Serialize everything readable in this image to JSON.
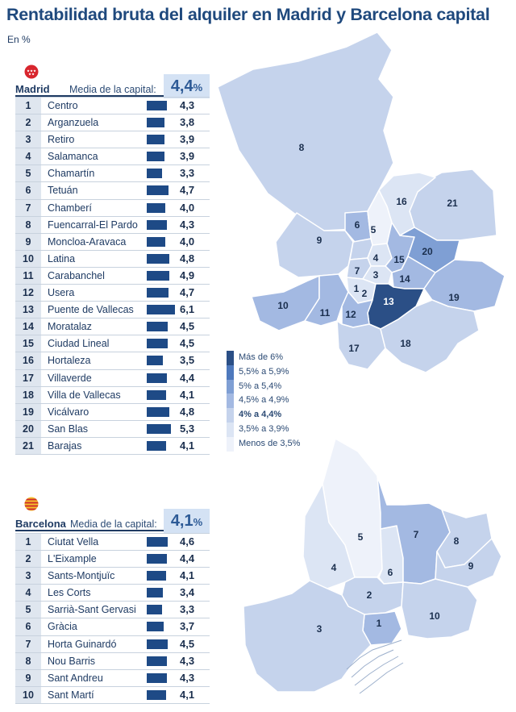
{
  "title": "Rentabilidad bruta del alquiler en Madrid y Barcelona capital",
  "subtitle": "En %",
  "madrid": {
    "city": "Madrid",
    "avg_label": "Media de la capital:",
    "avg_value": "4,4",
    "avg_unit": "%"
  },
  "barcelona": {
    "city": "Barcelona",
    "avg_label": "Media de la capital:",
    "avg_value": "4,1",
    "avg_unit": "%"
  },
  "legend": [
    {
      "label": "Más de 6%",
      "color": "#2b4f86"
    },
    {
      "label": "5,5% a 5,9%",
      "color": "#4e79bd"
    },
    {
      "label": "5% a 5,4%",
      "color": "#7f9fd4"
    },
    {
      "label": "4,5% a 4,9%",
      "color": "#a3b9e2"
    },
    {
      "label": "4% a 4,4%",
      "color": "#c5d3ec"
    },
    {
      "label": "3,5% a 3,9%",
      "color": "#dce5f4"
    },
    {
      "label": "Menos de 3,5%",
      "color": "#eef2fa"
    }
  ],
  "colors": {
    "bar": "#1e4a86",
    "title": "#1f497d",
    "avg_box": "#d4e2f4",
    "map_border": "#ffffff"
  },
  "chart_data": [
    {
      "type": "bar",
      "title": "Madrid",
      "ids": [
        "1",
        "2",
        "3",
        "4",
        "5",
        "6",
        "7",
        "8",
        "9",
        "10",
        "11",
        "12",
        "13",
        "14",
        "15",
        "16",
        "17",
        "18",
        "19",
        "20",
        "21"
      ],
      "categories": [
        "Centro",
        "Arganzuela",
        "Retiro",
        "Salamanca",
        "Chamartín",
        "Tetuán",
        "Chamberí",
        "Fuencarral-El Pardo",
        "Moncloa-Aravaca",
        "Latina",
        "Carabanchel",
        "Usera",
        "Puente de Vallecas",
        "Moratalaz",
        "Ciudad Lineal",
        "Hortaleza",
        "Villaverde",
        "Villa de Vallecas",
        "Vicálvaro",
        "San Blas",
        "Barajas"
      ],
      "values": [
        4.3,
        3.8,
        3.9,
        3.9,
        3.3,
        4.7,
        4.0,
        4.3,
        4.0,
        4.8,
        4.9,
        4.7,
        6.1,
        4.5,
        4.5,
        3.5,
        4.4,
        4.1,
        4.8,
        5.3,
        4.1
      ],
      "labels": [
        "4,3",
        "3,8",
        "3,9",
        "3,9",
        "3,3",
        "4,7",
        "4,0",
        "4,3",
        "4,0",
        "4,8",
        "4,9",
        "4,7",
        "6,1",
        "4,5",
        "4,5",
        "3,5",
        "4,4",
        "4,1",
        "4,8",
        "5,3",
        "4,1"
      ]
    },
    {
      "type": "bar",
      "title": "Barcelona",
      "ids": [
        "1",
        "2",
        "3",
        "4",
        "5",
        "6",
        "7",
        "8",
        "9",
        "10"
      ],
      "categories": [
        "Ciutat Vella",
        "L'Eixample",
        "Sants-Montjuïc",
        "Les Corts",
        "Sarrià-Sant Gervasi",
        "Gràcia",
        "Horta Guinardó",
        "Nou Barris",
        "Sant Andreu",
        "Sant Martí"
      ],
      "values": [
        4.6,
        4.4,
        4.1,
        3.4,
        3.3,
        3.7,
        4.5,
        4.3,
        4.3,
        4.1
      ],
      "labels": [
        "4,6",
        "4,4",
        "4,1",
        "3,4",
        "3,3",
        "3,7",
        "4,5",
        "4,3",
        "4,3",
        "4,1"
      ]
    }
  ],
  "map_labels": {
    "madrid": [
      "1",
      "2",
      "3",
      "4",
      "5",
      "6",
      "7",
      "8",
      "9",
      "10",
      "11",
      "12",
      "13",
      "14",
      "15",
      "16",
      "17",
      "18",
      "19",
      "20",
      "21"
    ],
    "barcelona": [
      "1",
      "2",
      "3",
      "4",
      "5",
      "6",
      "7",
      "8",
      "9",
      "10"
    ]
  }
}
